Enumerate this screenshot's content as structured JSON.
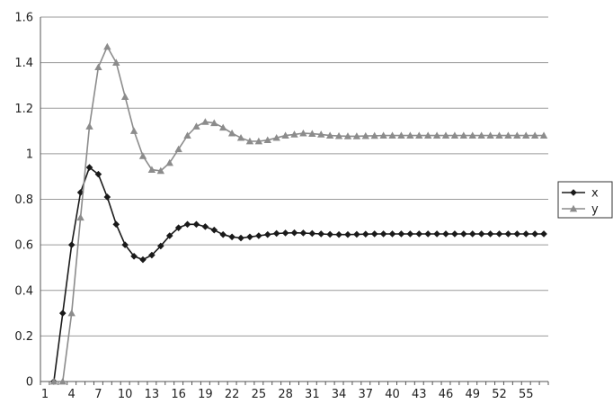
{
  "chart_data": {
    "type": "line",
    "title": "",
    "xlabel": "",
    "ylabel": "",
    "x_start": 1,
    "x_end": 57,
    "x_tick_labels": [
      "1",
      "4",
      "7",
      "10",
      "13",
      "16",
      "19",
      "22",
      "25",
      "28",
      "31",
      "34",
      "37",
      "40",
      "43",
      "46",
      "49",
      "52",
      "55"
    ],
    "ylim": [
      0,
      1.6
    ],
    "y_ticks": [
      0,
      0.2,
      0.4,
      0.6,
      0.8,
      1,
      1.2,
      1.4,
      1.6
    ],
    "y_tick_labels": [
      "0",
      "0.2",
      "0.4",
      "0.6",
      "0.8",
      "1",
      "1.2",
      "1.4",
      "1.6"
    ],
    "grid": "horizontal",
    "legend_position": "right",
    "series": [
      {
        "name": "x",
        "color": "#1a1a1a",
        "marker": "diamond",
        "points": [
          [
            2,
            0
          ],
          [
            3,
            0.3
          ],
          [
            4,
            0.6
          ],
          [
            5,
            0.83
          ],
          [
            6,
            0.94
          ],
          [
            7,
            0.91
          ],
          [
            8,
            0.81
          ],
          [
            9,
            0.69
          ],
          [
            10,
            0.6
          ],
          [
            11,
            0.55
          ],
          [
            12,
            0.535
          ],
          [
            13,
            0.555
          ],
          [
            14,
            0.595
          ],
          [
            15,
            0.64
          ],
          [
            16,
            0.675
          ],
          [
            17,
            0.69
          ],
          [
            18,
            0.69
          ],
          [
            19,
            0.68
          ],
          [
            20,
            0.665
          ],
          [
            21,
            0.645
          ],
          [
            22,
            0.635
          ],
          [
            23,
            0.63
          ],
          [
            24,
            0.635
          ],
          [
            25,
            0.64
          ],
          [
            26,
            0.645
          ],
          [
            27,
            0.65
          ],
          [
            28,
            0.652
          ],
          [
            29,
            0.653
          ],
          [
            30,
            0.652
          ],
          [
            31,
            0.65
          ],
          [
            32,
            0.648
          ],
          [
            33,
            0.646
          ],
          [
            34,
            0.645
          ],
          [
            35,
            0.645
          ],
          [
            36,
            0.646
          ],
          [
            37,
            0.647
          ],
          [
            38,
            0.648
          ],
          [
            39,
            0.648
          ],
          [
            40,
            0.648
          ],
          [
            41,
            0.648
          ],
          [
            42,
            0.648
          ],
          [
            43,
            0.648
          ],
          [
            44,
            0.648
          ],
          [
            45,
            0.648
          ],
          [
            46,
            0.648
          ],
          [
            47,
            0.648
          ],
          [
            48,
            0.648
          ],
          [
            49,
            0.648
          ],
          [
            50,
            0.648
          ],
          [
            51,
            0.648
          ],
          [
            52,
            0.648
          ],
          [
            53,
            0.648
          ],
          [
            54,
            0.648
          ],
          [
            55,
            0.648
          ],
          [
            56,
            0.648
          ],
          [
            57,
            0.648
          ]
        ]
      },
      {
        "name": "y",
        "color": "#8c8c8c",
        "marker": "triangle",
        "points": [
          [
            2,
            0
          ],
          [
            3,
            0
          ],
          [
            4,
            0.3
          ],
          [
            5,
            0.72
          ],
          [
            6,
            1.12
          ],
          [
            7,
            1.38
          ],
          [
            8,
            1.47
          ],
          [
            9,
            1.4
          ],
          [
            10,
            1.25
          ],
          [
            11,
            1.1
          ],
          [
            12,
            0.99
          ],
          [
            13,
            0.93
          ],
          [
            14,
            0.925
          ],
          [
            15,
            0.96
          ],
          [
            16,
            1.02
          ],
          [
            17,
            1.08
          ],
          [
            18,
            1.12
          ],
          [
            19,
            1.14
          ],
          [
            20,
            1.135
          ],
          [
            21,
            1.115
          ],
          [
            22,
            1.09
          ],
          [
            23,
            1.07
          ],
          [
            24,
            1.055
          ],
          [
            25,
            1.055
          ],
          [
            26,
            1.06
          ],
          [
            27,
            1.07
          ],
          [
            28,
            1.08
          ],
          [
            29,
            1.085
          ],
          [
            30,
            1.09
          ],
          [
            31,
            1.088
          ],
          [
            32,
            1.085
          ],
          [
            33,
            1.08
          ],
          [
            34,
            1.078
          ],
          [
            35,
            1.077
          ],
          [
            36,
            1.077
          ],
          [
            37,
            1.078
          ],
          [
            38,
            1.079
          ],
          [
            39,
            1.08
          ],
          [
            40,
            1.08
          ],
          [
            41,
            1.08
          ],
          [
            42,
            1.08
          ],
          [
            43,
            1.08
          ],
          [
            44,
            1.08
          ],
          [
            45,
            1.08
          ],
          [
            46,
            1.08
          ],
          [
            47,
            1.08
          ],
          [
            48,
            1.08
          ],
          [
            49,
            1.08
          ],
          [
            50,
            1.08
          ],
          [
            51,
            1.08
          ],
          [
            52,
            1.08
          ],
          [
            53,
            1.08
          ],
          [
            54,
            1.08
          ],
          [
            55,
            1.08
          ],
          [
            56,
            1.08
          ],
          [
            57,
            1.08
          ]
        ]
      }
    ]
  }
}
